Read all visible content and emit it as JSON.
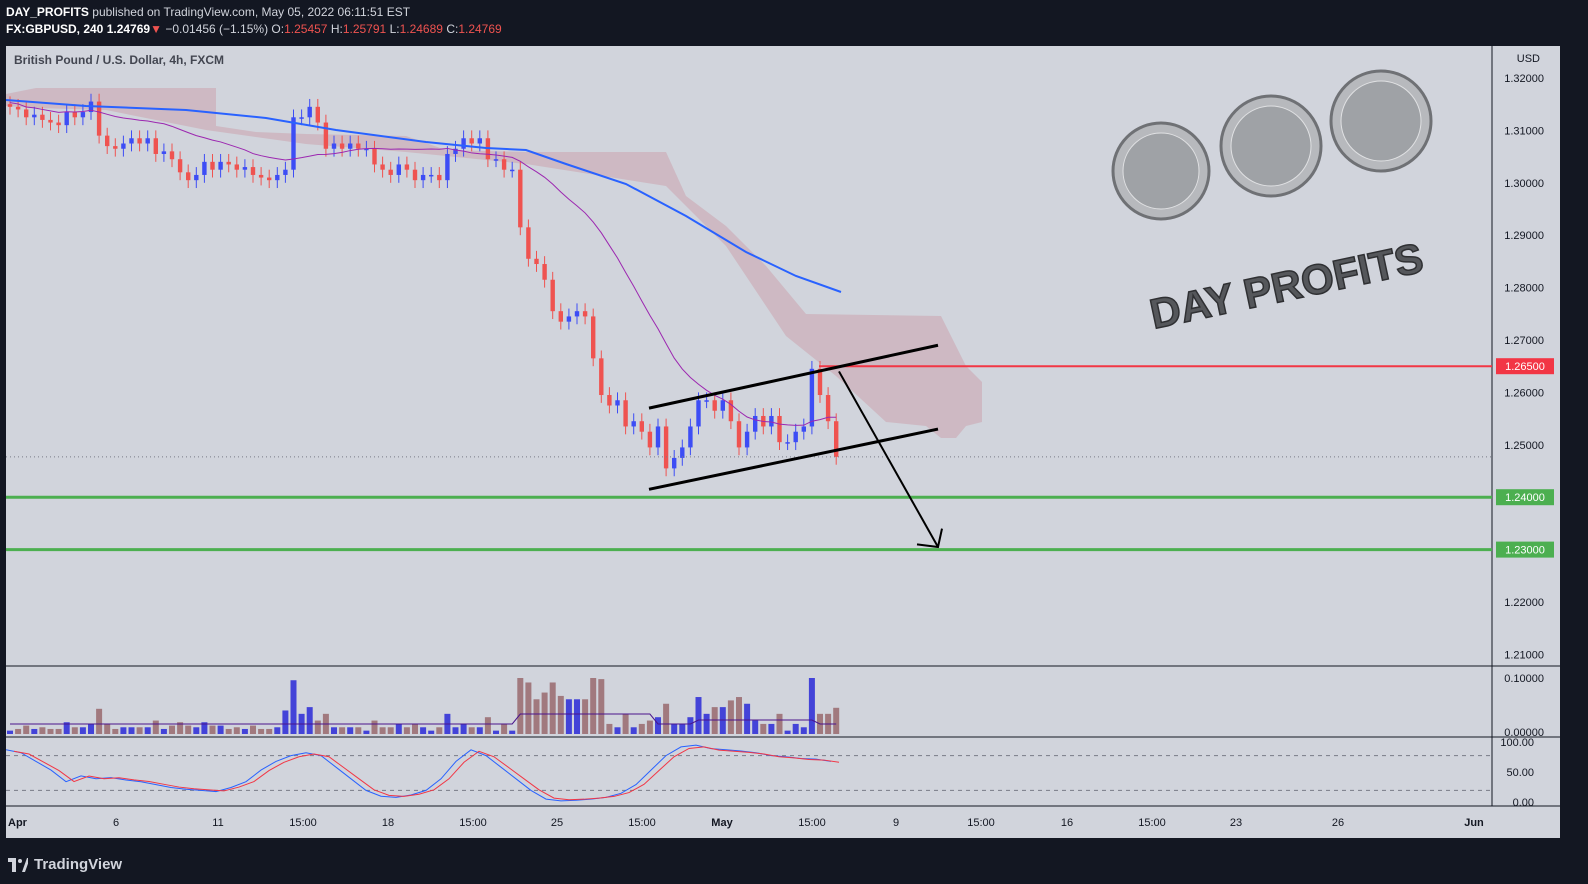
{
  "header": {
    "publisher": "DAY_PROFITS",
    "published_text": "published on TradingView.com, May 05, 2022 06:11:51 EST",
    "symbol": "FX:GBPUSD, 240",
    "last": "1.24769",
    "change": "−0.01456 (−1.15%)",
    "o_label": "O:",
    "o": "1.25457",
    "h_label": "H:",
    "h": "1.25791",
    "l_label": "L:",
    "l": "1.24689",
    "c_label": "C:",
    "c": "1.24769"
  },
  "legend_title": "British Pound / U.S. Dollar, 4h, FXCM",
  "currency": "USD",
  "watermark": "DAY PROFITS",
  "footer_brand": "TradingView",
  "colors": {
    "up": "#3d4df5",
    "down": "#ef5350",
    "ma_fast": "#9c27b0",
    "ma_slow": "#2962ff",
    "cloud": "#c99aa4",
    "resistance": "#f23645",
    "support": "#4caf50",
    "volume_up": "#4343d8",
    "volume_down": "#a1797e"
  },
  "chart_data": {
    "type": "candlestick",
    "title": "British Pound / U.S. Dollar, 4h, FXCM",
    "ylabel": "USD",
    "ylim": [
      1.205,
      1.325
    ],
    "y_ticks": [
      "1.32000",
      "1.31000",
      "1.30000",
      "1.29000",
      "1.28000",
      "1.27000",
      "1.26000",
      "1.25000",
      "1.24000",
      "1.23000",
      "1.22000",
      "1.21000"
    ],
    "x_ticks": [
      "Apr",
      "6",
      "11",
      "15:00",
      "18",
      "15:00",
      "25",
      "15:00",
      "May",
      "15:00",
      "9",
      "15:00",
      "16",
      "15:00",
      "23",
      "26",
      "Jun"
    ],
    "close_series": [
      1.3145,
      1.314,
      1.3125,
      1.313,
      1.312,
      1.3115,
      1.311,
      1.3135,
      1.3125,
      1.3135,
      1.3155,
      1.309,
      1.307,
      1.3065,
      1.3075,
      1.3085,
      1.3075,
      1.3085,
      1.3055,
      1.306,
      1.3045,
      1.302,
      1.3005,
      1.3015,
      1.304,
      1.3025,
      1.304,
      1.3035,
      1.3025,
      1.303,
      1.3015,
      1.301,
      1.3005,
      1.3015,
      1.3025,
      1.3125,
      1.3125,
      1.3145,
      1.3115,
      1.3065,
      1.3075,
      1.3065,
      1.3075,
      1.3065,
      1.3065,
      1.3035,
      1.3025,
      1.3015,
      1.3035,
      1.3025,
      1.3005,
      1.3015,
      1.3015,
      1.3005,
      1.3055,
      1.3065,
      1.3085,
      1.3075,
      1.3085,
      1.3045,
      1.3045,
      1.3025,
      1.3025,
      1.2915,
      1.2855,
      1.2845,
      1.2815,
      1.2755,
      1.2735,
      1.2745,
      1.2755,
      1.2745,
      1.2665,
      1.2595,
      1.2575,
      1.2585,
      1.2535,
      1.2545,
      1.2525,
      1.2495,
      1.2535,
      1.2455,
      1.2475,
      1.2495,
      1.2535,
      1.2585,
      1.2585,
      1.2565,
      1.2585,
      1.2545,
      1.2495,
      1.2525,
      1.2555,
      1.2535,
      1.2555,
      1.2505,
      1.2505,
      1.2525,
      1.2535,
      1.2645,
      1.2595,
      1.2545,
      1.2477
    ],
    "levels": {
      "resistance": "1.26500",
      "support_1": "1.24000",
      "support_2": "1.23000"
    },
    "indicators": {
      "volume_axis": [
        "0.10000",
        "0.00000"
      ],
      "stochastic_axis": [
        "100.00",
        "50.00",
        "0.00"
      ]
    }
  }
}
